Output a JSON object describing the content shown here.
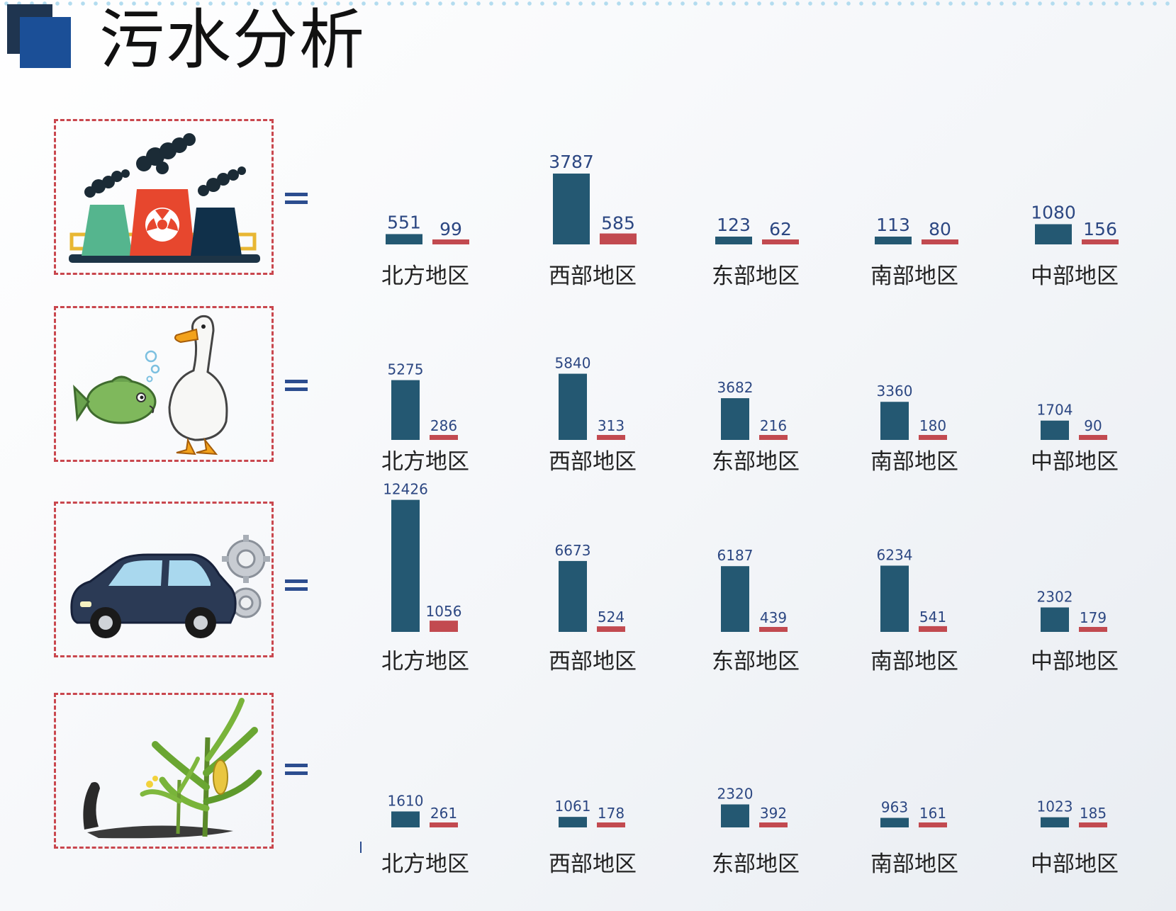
{
  "page": {
    "title": "污水分析"
  },
  "colors": {
    "primary_bar": "#245872",
    "secondary_bar": "#c24a50",
    "value_text": "#2c4782",
    "category_text": "#222222"
  },
  "rows": [
    {
      "icon": "factory-icon"
    },
    {
      "icon": "fish-duck-icon"
    },
    {
      "icon": "car-gears-icon"
    },
    {
      "icon": "corn-plant-icon"
    }
  ],
  "chart_data": [
    {
      "type": "bar",
      "categories": [
        "北方地区",
        "西部地区",
        "东部地区",
        "南部地区",
        "中部地区"
      ],
      "series": [
        {
          "values": [
            551,
            3787,
            123,
            113,
            1080
          ]
        },
        {
          "values": [
            99,
            585,
            62,
            80,
            156
          ]
        }
      ]
    },
    {
      "type": "bar",
      "categories": [
        "北方地区",
        "西部地区",
        "东部地区",
        "南部地区",
        "中部地区"
      ],
      "series": [
        {
          "values": [
            5275,
            5840,
            3682,
            3360,
            1704
          ]
        },
        {
          "values": [
            286,
            313,
            216,
            180,
            90
          ]
        }
      ]
    },
    {
      "type": "bar",
      "categories": [
        "北方地区",
        "西部地区",
        "东部地区",
        "南部地区",
        "中部地区"
      ],
      "series": [
        {
          "values": [
            12426,
            6673,
            6187,
            6234,
            2302
          ]
        },
        {
          "values": [
            1056,
            524,
            439,
            541,
            179
          ]
        }
      ]
    },
    {
      "type": "bar",
      "categories": [
        "北方地区",
        "西部地区",
        "东部地区",
        "南部地区",
        "中部地区"
      ],
      "series": [
        {
          "values": [
            1610,
            1061,
            2320,
            963,
            1023
          ]
        },
        {
          "values": [
            261,
            178,
            392,
            161,
            185
          ]
        }
      ]
    }
  ]
}
